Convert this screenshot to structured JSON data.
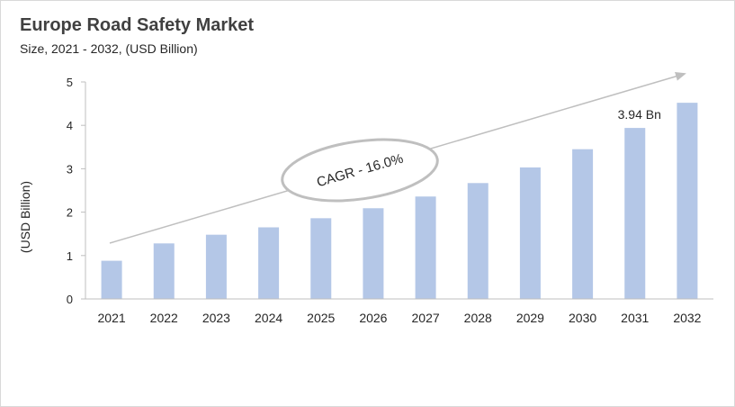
{
  "title": "Europe Road Safety Market",
  "subtitle": "Size, 2021 - 2032, (USD Billion)",
  "chart_data": {
    "type": "bar",
    "categories": [
      "2021",
      "2022",
      "2023",
      "2024",
      "2025",
      "2026",
      "2027",
      "2028",
      "2029",
      "2030",
      "2031",
      "2032"
    ],
    "values": [
      0.88,
      1.28,
      1.48,
      1.65,
      1.86,
      2.09,
      2.36,
      2.67,
      3.03,
      3.45,
      3.94,
      4.52
    ],
    "ylabel": "(USD Billion)",
    "xlabel": "",
    "ylim": [
      0,
      5
    ],
    "yticks": [
      0,
      1,
      2,
      3,
      4,
      5
    ],
    "grid": false,
    "legend": "none",
    "bar_color": "#b4c7e7",
    "annotations": [
      {
        "text": "3.94 Bn",
        "category": "2031"
      },
      {
        "text": "CAGR - 16.0%",
        "shape": "ellipse"
      }
    ]
  }
}
